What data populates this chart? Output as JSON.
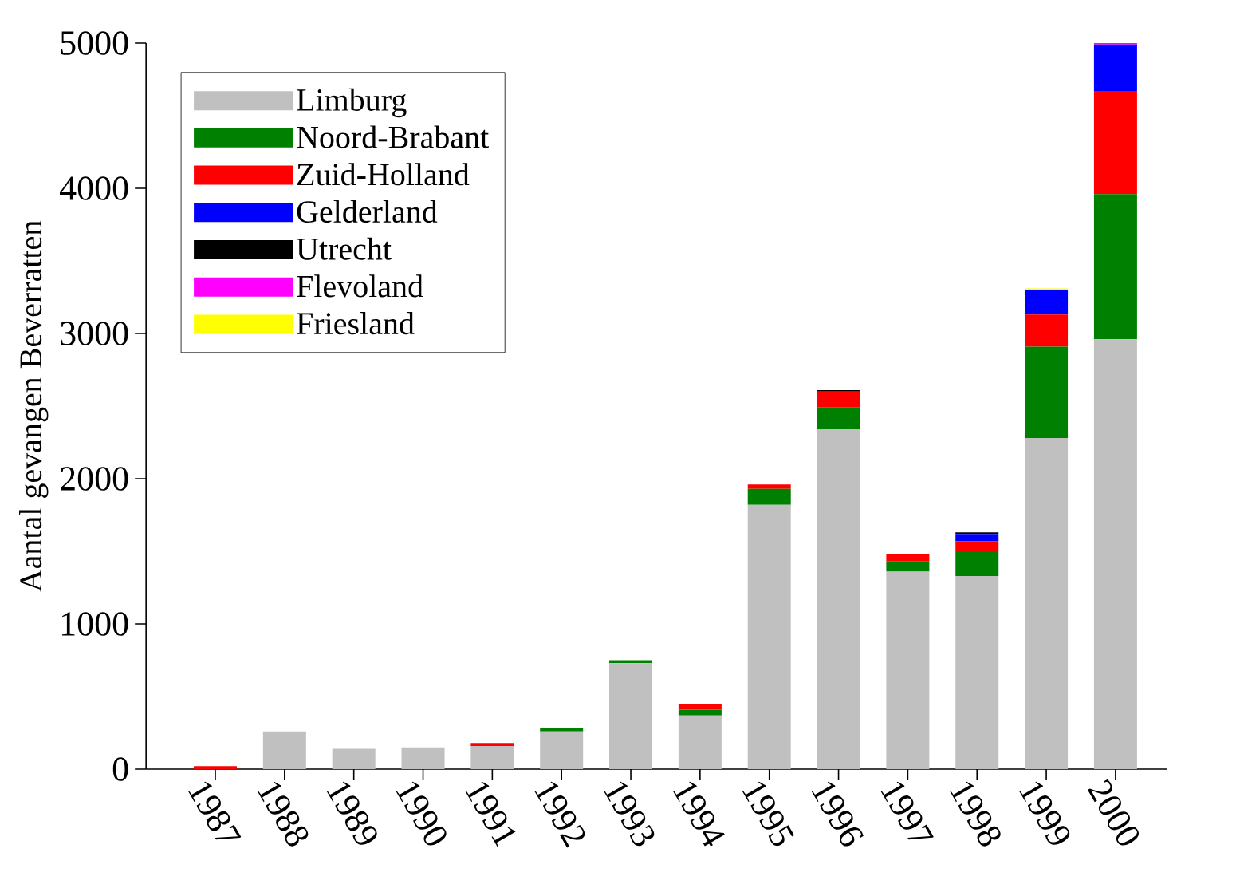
{
  "chart_data": {
    "type": "bar",
    "stacked": true,
    "ylabel": "Aantal gevangen Beverratten",
    "categories": [
      "1987",
      "1988",
      "1989",
      "1990",
      "1991",
      "1992",
      "1993",
      "1994",
      "1995",
      "1996",
      "1997",
      "1998",
      "1999",
      "2000"
    ],
    "series": [
      {
        "name": "Limburg",
        "color": "#c0c0c0",
        "values": [
          0,
          260,
          140,
          150,
          160,
          260,
          730,
          370,
          1820,
          2340,
          1360,
          1330,
          2280,
          2960
        ]
      },
      {
        "name": "Noord-Brabant",
        "color": "#008000",
        "values": [
          0,
          0,
          0,
          0,
          0,
          20,
          20,
          40,
          110,
          150,
          70,
          170,
          630,
          1000
        ]
      },
      {
        "name": "Zuid-Holland",
        "color": "#ff0000",
        "values": [
          20,
          0,
          0,
          0,
          20,
          0,
          0,
          40,
          30,
          110,
          50,
          70,
          220,
          710
        ]
      },
      {
        "name": "Gelderland",
        "color": "#0000ff",
        "values": [
          0,
          0,
          0,
          0,
          0,
          0,
          0,
          0,
          0,
          0,
          0,
          50,
          170,
          320
        ]
      },
      {
        "name": "Utrecht",
        "color": "#000000",
        "values": [
          0,
          0,
          0,
          0,
          0,
          0,
          0,
          0,
          0,
          10,
          0,
          10,
          0,
          0
        ]
      },
      {
        "name": "Flevoland",
        "color": "#ff00ff",
        "values": [
          0,
          0,
          0,
          0,
          0,
          0,
          0,
          0,
          0,
          0,
          0,
          0,
          0,
          10
        ]
      },
      {
        "name": "Friesland",
        "color": "#ffff00",
        "values": [
          0,
          0,
          0,
          0,
          0,
          0,
          0,
          0,
          0,
          0,
          0,
          0,
          10,
          0
        ]
      }
    ],
    "ylim": [
      0,
      5000
    ],
    "yticks": [
      0,
      1000,
      2000,
      3000,
      4000,
      5000
    ],
    "legend": "top left"
  }
}
